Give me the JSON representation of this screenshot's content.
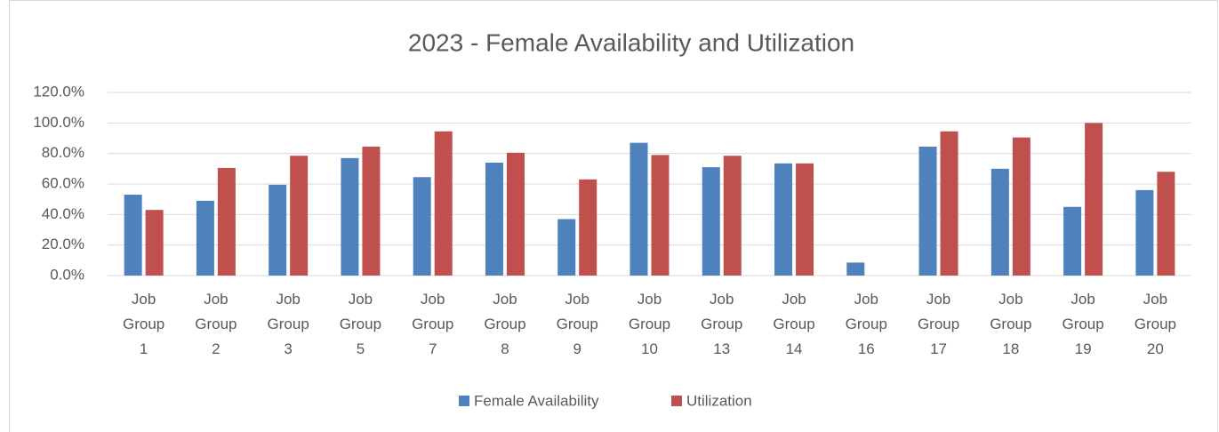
{
  "chart_data": {
    "type": "bar",
    "title": "2023 - Female Availability and Utilization",
    "categories": [
      "Job Group 1",
      "Job Group 2",
      "Job Group 3",
      "Job Group 5",
      "Job Group 7",
      "Job Group 8",
      "Job Group 9",
      "Job Group 10",
      "Job Group 13",
      "Job Group 14",
      "Job Group 16",
      "Job Group 17",
      "Job Group 18",
      "Job Group 19",
      "Job Group 20"
    ],
    "series": [
      {
        "name": "Female Availability",
        "color": "#4f81bd",
        "values": [
          53,
          49,
          59.5,
          77,
          64.5,
          74,
          37,
          87,
          71,
          73.5,
          8.5,
          84.5,
          70,
          45,
          56
        ]
      },
      {
        "name": "Utilization",
        "color": "#c0504d",
        "values": [
          43,
          70.5,
          78.5,
          84.5,
          94.5,
          80.5,
          63,
          79,
          78.5,
          73.5,
          0,
          94.5,
          90.5,
          100,
          68
        ]
      }
    ],
    "ylim": [
      0,
      120
    ],
    "yticks": [
      {
        "value": 0,
        "label": "0.0%"
      },
      {
        "value": 20,
        "label": "20.0%"
      },
      {
        "value": 40,
        "label": "40.0%"
      },
      {
        "value": 60,
        "label": "60.0%"
      },
      {
        "value": 80,
        "label": "80.0%"
      },
      {
        "value": 100,
        "label": "100.0%"
      },
      {
        "value": 120,
        "label": "120.0%"
      }
    ],
    "grid": true,
    "legend": "bottom"
  }
}
